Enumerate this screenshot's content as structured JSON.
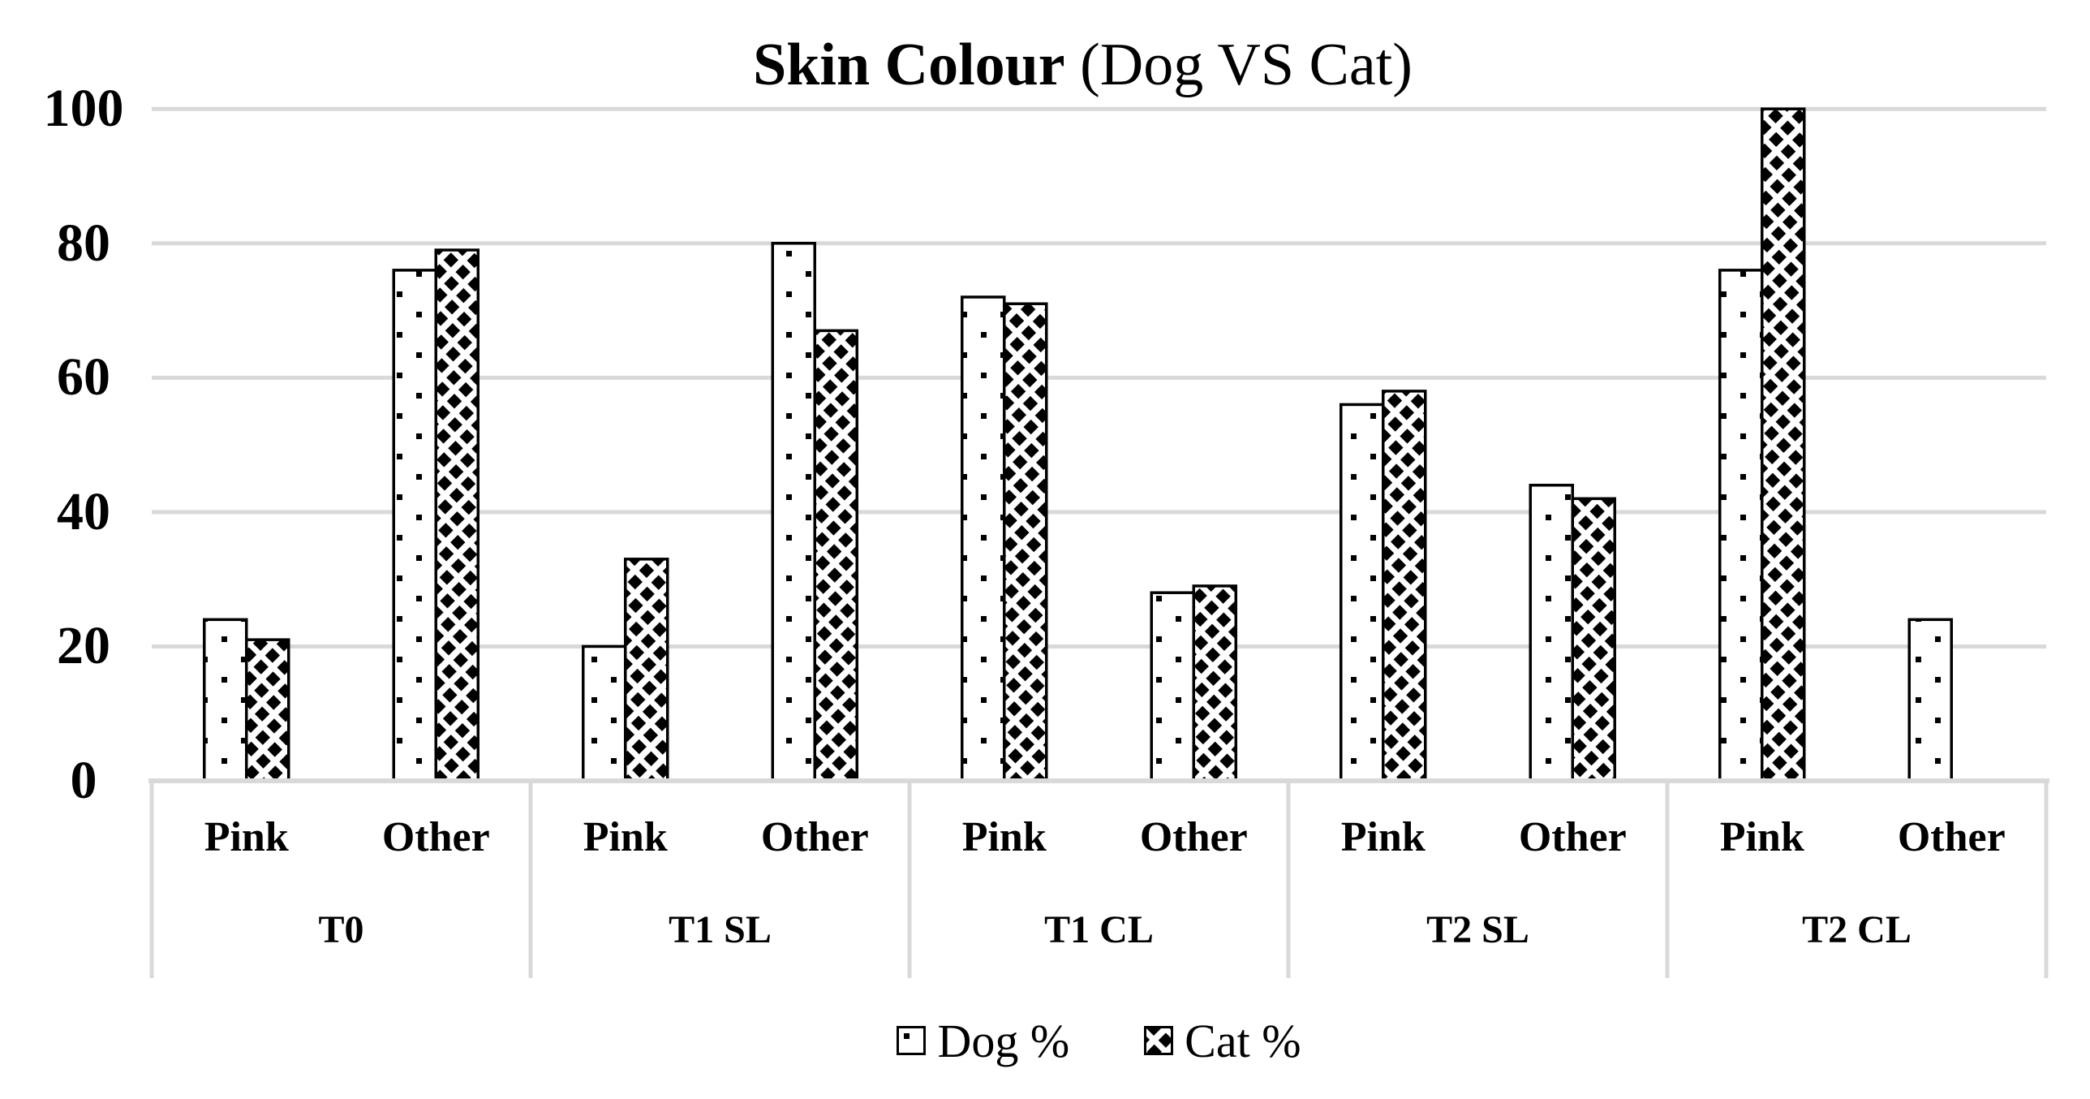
{
  "title": {
    "full": "Skin Colour (Dog VS Cat)",
    "bold_part": "Skin Colour",
    "regular_part": " (Dog VS Cat)"
  },
  "legend": {
    "items": [
      {
        "label": "Dog %",
        "swatch": "dotted-square-icon",
        "fill_pattern": "small-dots"
      },
      {
        "label": "Cat %",
        "swatch": "diagonal-hatch-square-icon",
        "fill_pattern": "diagonal-hatch"
      }
    ]
  },
  "colors": {
    "background": "#ffffff",
    "bar_fill": "#ffffff",
    "bar_border": "#000000",
    "pattern_ink": "#000000",
    "gridline": "#d9d9d9",
    "axis_table_border": "#d9d9d9",
    "text": "#000000"
  },
  "chart_data": {
    "type": "bar",
    "title": "Skin Colour (Dog VS Cat)",
    "xlabel": "",
    "ylabel": "",
    "ylim": [
      0,
      100
    ],
    "yticks": [
      "0",
      "20",
      "40",
      "60",
      "80",
      "100"
    ],
    "ytick_values": [
      0,
      20,
      40,
      60,
      80,
      100
    ],
    "grid": "horizontal-gridlines-on",
    "legend_position": "bottom-center",
    "group_labels": [
      "T0",
      "T1 SL",
      "T1 CL",
      "T2 SL",
      "T2 CL"
    ],
    "subcategory_labels": [
      "Pink",
      "Other"
    ],
    "series": [
      {
        "name": "Dog %",
        "fill_pattern": "small-dots",
        "values": [
          [
            24,
            76
          ],
          [
            20,
            80
          ],
          [
            72,
            28
          ],
          [
            56,
            44
          ],
          [
            76,
            24
          ]
        ]
      },
      {
        "name": "Cat %",
        "fill_pattern": "diagonal-hatch",
        "values": [
          [
            21,
            79
          ],
          [
            33,
            67
          ],
          [
            71,
            29
          ],
          [
            58,
            42
          ],
          [
            100,
            0
          ]
        ]
      }
    ]
  }
}
